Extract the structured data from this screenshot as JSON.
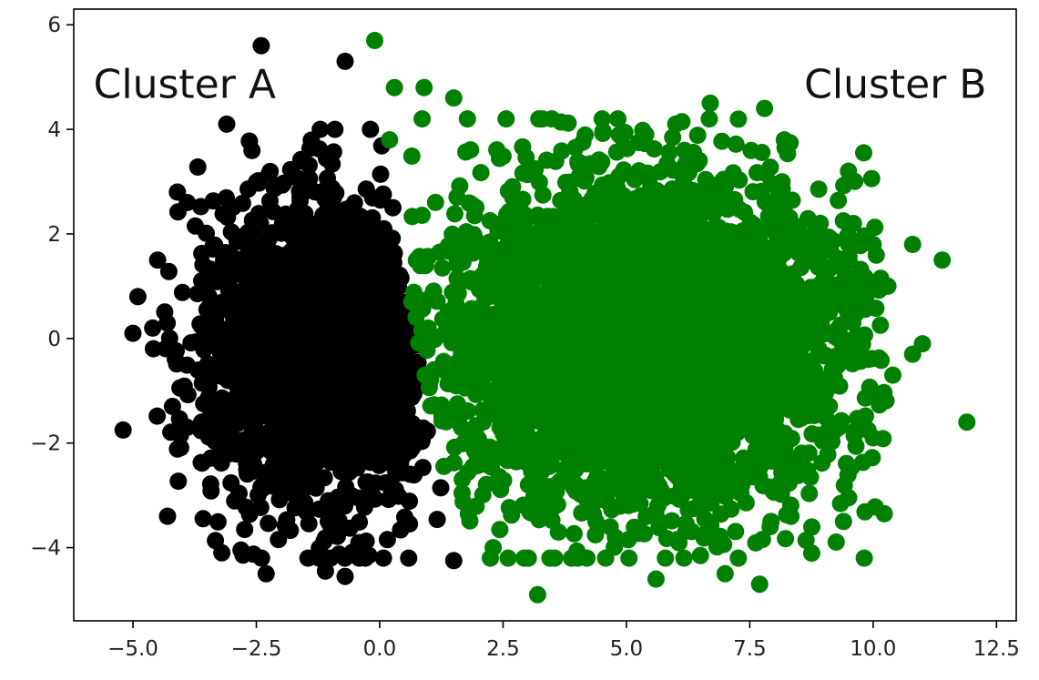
{
  "chart_data": {
    "type": "scatter",
    "title": "",
    "xlabel": "",
    "ylabel": "",
    "xlim": [
      -6.2,
      12.9
    ],
    "ylim": [
      -5.4,
      6.3
    ],
    "grid": false,
    "x_ticks": [
      -5.0,
      -2.5,
      0.0,
      2.5,
      5.0,
      7.5,
      10.0,
      12.5
    ],
    "x_tick_labels": [
      "−5.0",
      "−2.5",
      "0.0",
      "2.5",
      "5.0",
      "7.5",
      "10.0",
      "12.5"
    ],
    "y_ticks": [
      -4,
      -2,
      0,
      2,
      4,
      6
    ],
    "y_tick_labels": [
      "−4",
      "−2",
      "0",
      "2",
      "4",
      "6"
    ],
    "annotations": [
      {
        "text": "Cluster A",
        "x": -5.8,
        "y": 4.6,
        "anchor": "start"
      },
      {
        "text": "Cluster B",
        "x": 12.3,
        "y": 4.6,
        "anchor": "end"
      }
    ],
    "series": [
      {
        "color": "#000000",
        "core_points": 1900,
        "outliers": [
          [
            -5.2,
            -1.75
          ],
          [
            -4.3,
            -3.4
          ],
          [
            -3.2,
            -4.1
          ],
          [
            -2.3,
            -4.5
          ],
          [
            -0.7,
            -4.55
          ],
          [
            -2.4,
            5.6
          ],
          [
            -0.7,
            5.3
          ],
          [
            -3.1,
            4.1
          ],
          [
            -4.1,
            2.8
          ],
          [
            -4.5,
            1.5
          ],
          [
            -4.9,
            0.8
          ],
          [
            -5.0,
            0.1
          ],
          [
            -4.2,
            -1.3
          ],
          [
            -3.9,
            -1.7
          ],
          [
            -1.1,
            -4.45
          ],
          [
            1.5,
            -4.25
          ],
          [
            -4.6,
            0.2
          ],
          [
            -3.9,
            2.6
          ]
        ]
      },
      {
        "color": "#008000",
        "core_points": 3800,
        "outliers": [
          [
            -0.1,
            5.7
          ],
          [
            0.3,
            4.8
          ],
          [
            0.9,
            4.8
          ],
          [
            1.5,
            4.6
          ],
          [
            6.7,
            4.5
          ],
          [
            7.8,
            4.4
          ],
          [
            11.9,
            -1.6
          ],
          [
            11.4,
            1.5
          ],
          [
            10.8,
            1.8
          ],
          [
            11.0,
            -0.1
          ],
          [
            10.8,
            -0.3
          ],
          [
            3.2,
            -4.9
          ],
          [
            5.6,
            -4.6
          ],
          [
            7.7,
            -4.7
          ],
          [
            7.0,
            -4.5
          ],
          [
            2.3,
            -4.0
          ],
          [
            4.2,
            -4.2
          ],
          [
            9.5,
            3.2
          ],
          [
            9.9,
            -0.4
          ],
          [
            10.4,
            -0.7
          ],
          [
            9.6,
            2.2
          ],
          [
            10.0,
            1.8
          ],
          [
            10.3,
            1.0
          ],
          [
            6.0,
            4.1
          ],
          [
            8.2,
            3.8
          ],
          [
            9.4,
            -3.5
          ],
          [
            10.0,
            -1.9
          ],
          [
            0.2,
            3.8
          ]
        ]
      }
    ]
  }
}
